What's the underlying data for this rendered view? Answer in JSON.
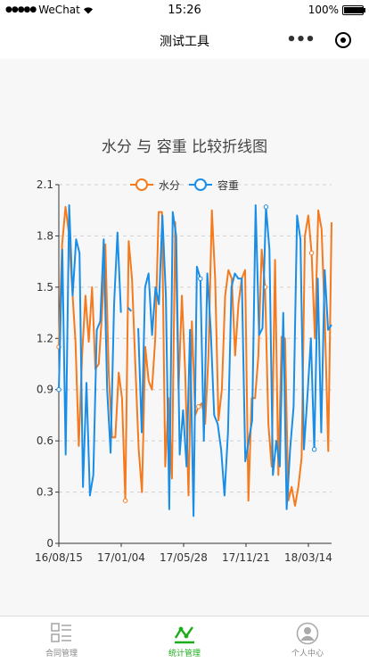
{
  "status": {
    "carrier": "WeChat",
    "time": "15:26",
    "battery": "100%",
    "battery_level": 1.0
  },
  "nav": {
    "title": "测试工具"
  },
  "chart_data": {
    "type": "line",
    "title": "水分 与 容重 比较折线图",
    "xlabel": "",
    "ylabel": "",
    "ylim": [
      0,
      2.1
    ],
    "yticks": [
      "0",
      "0.3",
      "0.6",
      "0.9",
      "1.2",
      "1.5",
      "1.8",
      "2.1"
    ],
    "xticks": [
      "16/08/15",
      "17/01/04",
      "17/05/28",
      "17/11/21",
      "18/03/14"
    ],
    "grid": "horizontal-dashed",
    "legend": "top-center",
    "series": [
      {
        "name": "水分",
        "color": "#f57a1d",
        "values": [
          1.15,
          1.75,
          1.97,
          1.82,
          1.5,
          1.18,
          0.57,
          1.1,
          1.45,
          1.18,
          1.5,
          1.02,
          1.05,
          1.35,
          1.75,
          1.0,
          0.62,
          0.62,
          1.0,
          0.85,
          0.25,
          1.77,
          1.55,
          1.05,
          0.55,
          0.3,
          1.15,
          0.95,
          0.9,
          1.2,
          1.94,
          1.94,
          0.45,
          0.85,
          0.38,
          1.88,
          0.9,
          1.45,
          1.0,
          0.28,
          1.3,
          0.75,
          0.8,
          0.82,
          0.7,
          1.1,
          1.95,
          1.55,
          0.72,
          0.9,
          1.45,
          1.6,
          1.55,
          1.1,
          1.4,
          1.55,
          1.6,
          0.25,
          0.85,
          0.85,
          1.1,
          1.72,
          1.5,
          0.7,
          0.45,
          1.66,
          0.4,
          1.21,
          1.2,
          0.25,
          0.33,
          0.22,
          0.33,
          0.5,
          1.8,
          1.92,
          1.7,
          1.2,
          1.95,
          1.84,
          1.3,
          0.54,
          1.88
        ]
      },
      {
        "name": "容重",
        "color": "#1a8ee6",
        "values": [
          0.9,
          1.72,
          0.52,
          1.98,
          1.45,
          1.78,
          1.7,
          0.33,
          0.94,
          0.28,
          0.4,
          1.25,
          1.3,
          1.78,
          0.9,
          0.53,
          1.4,
          1.82,
          1.35,
          null,
          1.38,
          1.36,
          null,
          1.26,
          0.65,
          1.5,
          1.58,
          1.22,
          1.5,
          1.4,
          1.92,
          1.45,
          0.2,
          1.94,
          1.8,
          0.52,
          0.78,
          0.45,
          1.25,
          0.16,
          1.62,
          1.55,
          0.6,
          1.58,
          1.25,
          0.75,
          0.7,
          0.55,
          0.28,
          0.65,
          1.5,
          1.58,
          1.55,
          1.55,
          0.48,
          0.6,
          0.72,
          1.98,
          1.22,
          1.26,
          1.97,
          1.72,
          0.4,
          0.6,
          0.45,
          1.35,
          0.2,
          0.55,
          0.8,
          1.92,
          1.78,
          0.55,
          0.86,
          1.2,
          0.55,
          1.55,
          0.65,
          1.6,
          1.25,
          1.28
        ]
      }
    ]
  },
  "tabbar": {
    "items": [
      {
        "label": "合同管理",
        "icon": "contract-list-icon",
        "active": false
      },
      {
        "label": "统计管理",
        "icon": "statistics-chart-icon",
        "active": true
      },
      {
        "label": "个人中心",
        "icon": "user-avatar-icon",
        "active": false
      }
    ]
  },
  "colors": {
    "active": "#1aad19",
    "inactive": "#888888"
  }
}
